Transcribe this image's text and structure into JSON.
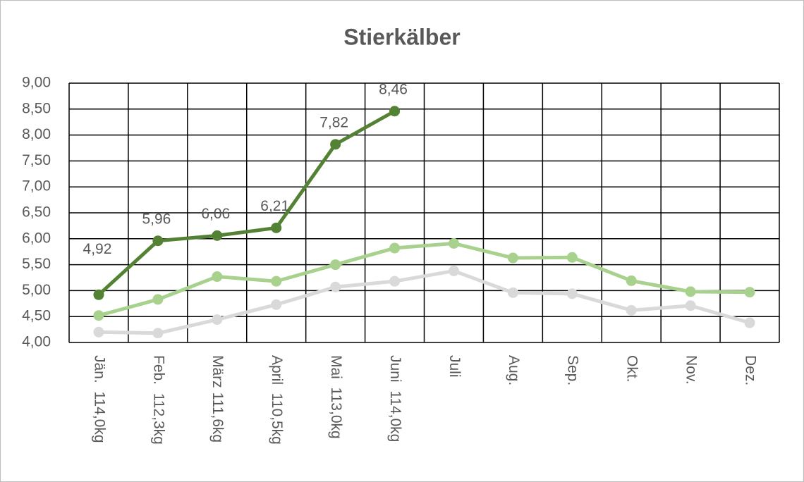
{
  "chart_data": {
    "type": "line",
    "title": "Stierkälber",
    "categories": [
      "Jän.  114,0kg",
      "Feb.  112,3kg",
      "März 111,6kg",
      "April  110,5kg",
      "Mai  113,0kg",
      "Juni  114,0kg",
      "Juli",
      "Aug.",
      "Sep.",
      "Okt.",
      "Nov.",
      "Dez."
    ],
    "series": [
      {
        "color": "#d9d9d9",
        "values": [
          4.2,
          4.18,
          4.44,
          4.73,
          5.07,
          5.18,
          5.38,
          4.96,
          4.94,
          4.62,
          4.71,
          4.38
        ]
      },
      {
        "color": "#a9d18e",
        "values": [
          4.52,
          4.83,
          5.27,
          5.18,
          5.5,
          5.82,
          5.91,
          5.63,
          5.64,
          5.19,
          4.98,
          4.97
        ]
      },
      {
        "color": "#548235",
        "values": [
          4.92,
          5.96,
          6.06,
          6.21,
          7.82,
          8.46,
          null,
          null,
          null,
          null,
          null,
          null
        ],
        "value_labels": [
          "4,92",
          "5,96",
          "6,06",
          "6,21",
          "7,82",
          "8,46",
          null,
          null,
          null,
          null,
          null,
          null
        ]
      }
    ],
    "ylim": [
      4,
      9
    ],
    "yticks": [
      {
        "value": 4,
        "label": "4,00"
      },
      {
        "value": 4.5,
        "label": "4,50"
      },
      {
        "value": 5,
        "label": "5,00"
      },
      {
        "value": 5.5,
        "label": "5,50"
      },
      {
        "value": 6,
        "label": "6,00"
      },
      {
        "value": 6.5,
        "label": "6,50"
      },
      {
        "value": 7,
        "label": "7,00"
      },
      {
        "value": 7.5,
        "label": "7,50"
      },
      {
        "value": 8,
        "label": "8,00"
      },
      {
        "value": 8.5,
        "label": "8,50"
      },
      {
        "value": 9,
        "label": "9,00"
      }
    ],
    "grid": true
  }
}
